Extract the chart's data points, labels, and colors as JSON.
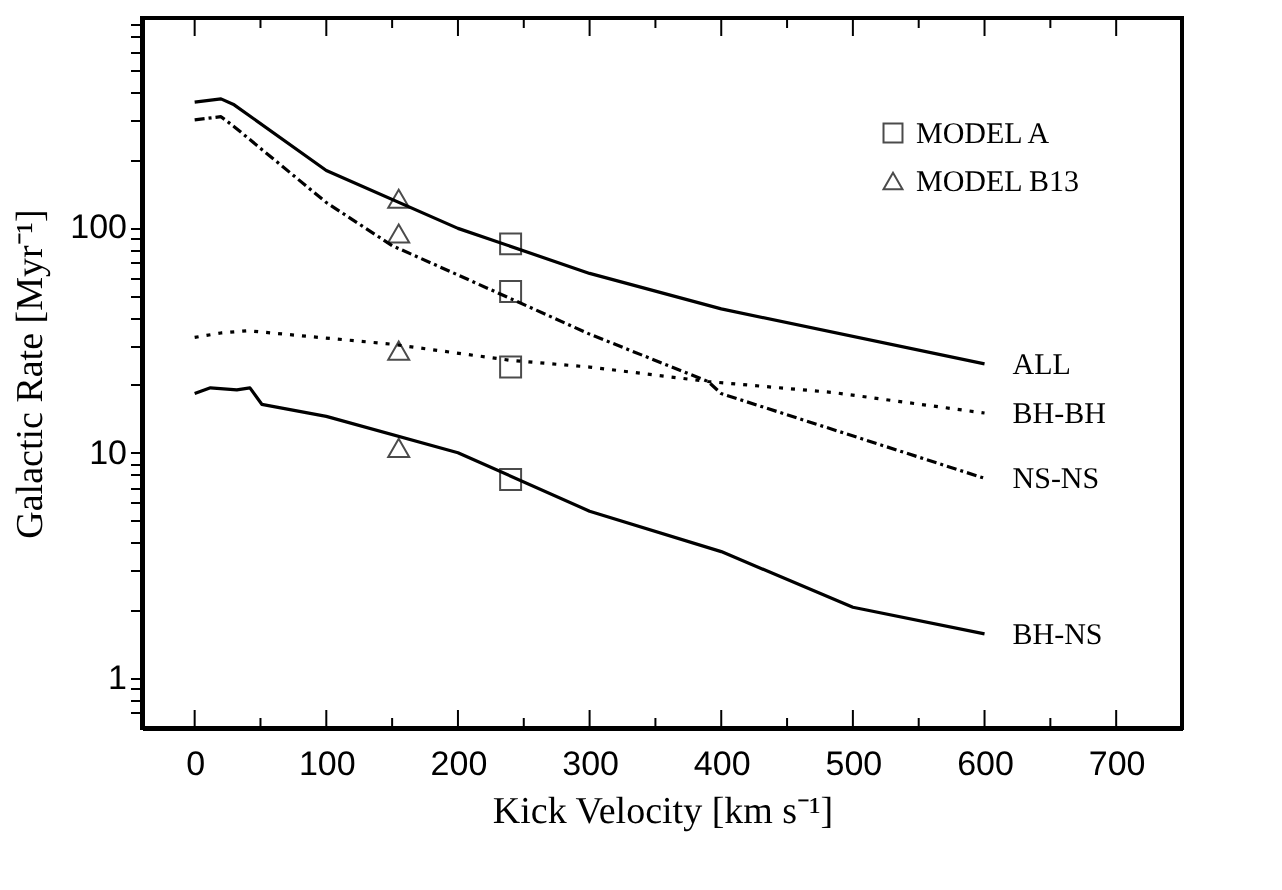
{
  "chart_data": {
    "type": "line",
    "xlabel": "Kick Velocity [km s⁻¹]",
    "ylabel": "Galactic Rate [Myr⁻¹]",
    "log": "y",
    "xlim": [
      -40,
      750
    ],
    "ylim": [
      0.6,
      850
    ],
    "xticks": [
      0,
      {
        "value": 50,
        "label": null
      },
      100,
      {
        "value": 150,
        "label": null
      },
      200,
      {
        "value": 250,
        "label": null
      },
      300,
      {
        "value": 350,
        "label": null
      },
      400,
      {
        "value": 450,
        "label": null
      },
      500,
      {
        "value": 550,
        "label": null
      },
      600,
      {
        "value": 650,
        "label": null
      },
      700
    ],
    "yticks": [
      {
        "value": 0.7,
        "label": null
      },
      {
        "value": 0.8,
        "label": null
      },
      {
        "value": 0.9,
        "label": null
      },
      1,
      {
        "value": 2,
        "label": null
      },
      {
        "value": 3,
        "label": null
      },
      {
        "value": 4,
        "label": null
      },
      {
        "value": 5,
        "label": null
      },
      {
        "value": 6,
        "label": null
      },
      {
        "value": 7,
        "label": null
      },
      {
        "value": 8,
        "label": null
      },
      {
        "value": 9,
        "label": null
      },
      10,
      {
        "value": 20,
        "label": null
      },
      {
        "value": 30,
        "label": null
      },
      {
        "value": 40,
        "label": null
      },
      {
        "value": 50,
        "label": null
      },
      {
        "value": 60,
        "label": null
      },
      {
        "value": 70,
        "label": null
      },
      {
        "value": 80,
        "label": null
      },
      {
        "value": 90,
        "label": null
      },
      100,
      {
        "value": 200,
        "label": null
      },
      {
        "value": 300,
        "label": null
      },
      {
        "value": 400,
        "label": null
      },
      {
        "value": 500,
        "label": null
      },
      {
        "value": 600,
        "label": null
      },
      {
        "value": 700,
        "label": null
      },
      {
        "value": 800,
        "label": null
      }
    ],
    "grid": false,
    "legend": "top right",
    "series": [
      {
        "name": "ALL",
        "color": "#000000",
        "type": "line",
        "line_style": "solid",
        "x": [
          0,
          20,
          30,
          100,
          200,
          300,
          400,
          600
        ],
        "values": [
          360,
          372,
          350,
          179,
          99,
          62.5,
          43.5,
          24.8
        ]
      },
      {
        "name": "BH-BH",
        "color": "#000000",
        "type": "line",
        "line_style": "dotted",
        "x": [
          0,
          20,
          40,
          150,
          240,
          300,
          390,
          485,
          600
        ],
        "values": [
          32.5,
          34,
          34.8,
          30.3,
          25.7,
          24,
          20.7,
          18.5,
          15
        ]
      },
      {
        "name": "NS-NS",
        "color": "#000000",
        "type": "line",
        "line_style": "dashdot",
        "x": [
          0,
          20,
          30,
          100,
          150,
          200,
          300,
          390,
          400,
          600
        ],
        "values": [
          300,
          310,
          280,
          129,
          83,
          61.5,
          33.6,
          20.7,
          18.3,
          7.7
        ]
      },
      {
        "name": "BH-NS",
        "color": "#000000",
        "type": "line",
        "line_style": "solid",
        "x": [
          0,
          12,
          32,
          42,
          51,
          100,
          200,
          300,
          400,
          500,
          600
        ],
        "values": [
          18.3,
          19.4,
          19,
          19.4,
          16.4,
          14.5,
          10,
          5.5,
          3.64,
          2.06,
          1.57
        ]
      },
      {
        "name": "MODEL A",
        "color": "#000000",
        "type": "scatter",
        "marker": "square",
        "x": [
          240,
          240,
          240,
          240
        ],
        "values": [
          84.5,
          52,
          24,
          7.6
        ]
      },
      {
        "name": "MODEL B13",
        "color": "#000000",
        "type": "scatter",
        "marker": "triangle",
        "x": [
          155,
          155,
          155,
          155
        ],
        "values": [
          134,
          94,
          28.4,
          10.5
        ]
      }
    ]
  }
}
